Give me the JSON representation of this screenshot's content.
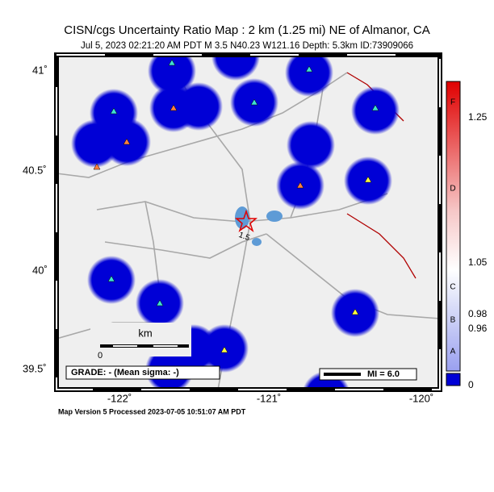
{
  "header": {
    "title": "CISN/cgs Uncertainty Ratio Map : 2 km (1.25 mi) NE of Almanor, CA",
    "subtitle": "Jul  5, 2023 02:21:20 AM PDT   M 3.5   N40.23 W121.16   Depth: 5.3km   ID:73909066"
  },
  "map": {
    "lat_labels": [
      "41˚",
      "40.5˚",
      "40˚",
      "39.5˚"
    ],
    "lon_labels": [
      "-122˚",
      "-121˚",
      "-120˚"
    ],
    "scale_label": "km",
    "scale_zero": "0",
    "event_label": "1.5",
    "grade": "GRADE: - (Mean sigma: -)",
    "mi_legend": "MI = 6.0"
  },
  "colorbar": {
    "labels": [
      "F",
      "1.25",
      "D",
      "1.05",
      "C",
      "0.98",
      "B",
      "0.96",
      "A",
      "0"
    ]
  },
  "footer": "Map Version 5 Processed 2023-07-05 10:51:07 AM PDT"
}
